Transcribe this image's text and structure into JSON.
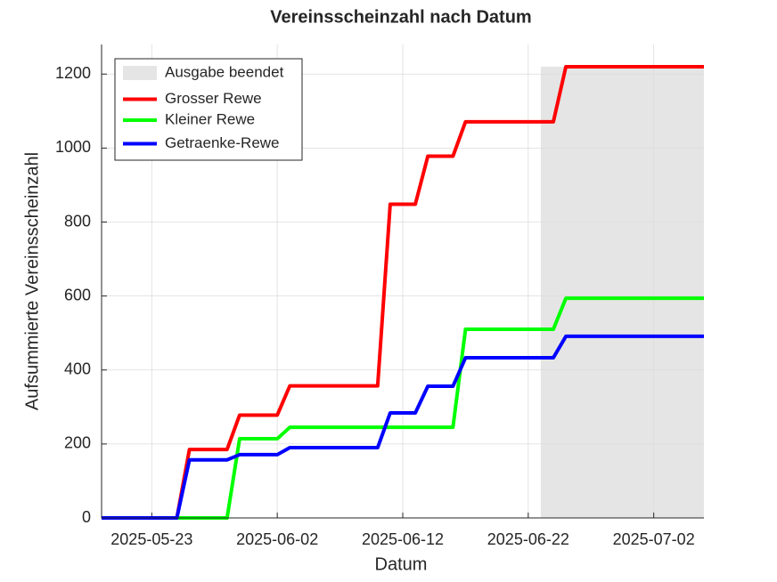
{
  "chart_data": {
    "type": "line",
    "title": "Vereinsscheinzahl nach Datum",
    "x_label": "Datum",
    "y_label": "Aufsummierte Vereinsscheinzahl",
    "xlim": [
      "2025-05-19",
      "2025-07-06"
    ],
    "xticks": [
      "2025-05-23",
      "2025-06-02",
      "2025-06-12",
      "2025-06-22",
      "2025-07-02"
    ],
    "ylim": [
      0,
      1280
    ],
    "yticks": [
      0,
      200,
      400,
      600,
      800,
      1000,
      1200
    ],
    "grid": true,
    "legend": "northwest",
    "shade": {
      "name": "Ausgabe beendet",
      "color": "#e5e5e5",
      "x": [
        "2025-06-23",
        "2025-07-06"
      ],
      "y": [
        0,
        1220
      ]
    },
    "series": [
      {
        "name": "Grosser Rewe",
        "color": "#ff0000",
        "x": [
          "2025-05-19",
          "2025-05-25",
          "2025-05-26",
          "2025-05-29",
          "2025-05-30",
          "2025-06-02",
          "2025-06-03",
          "2025-06-10",
          "2025-06-11",
          "2025-06-13",
          "2025-06-14",
          "2025-06-16",
          "2025-06-17",
          "2025-06-24",
          "2025-06-25",
          "2025-07-06"
        ],
        "values": [
          0,
          0,
          185,
          185,
          278,
          278,
          357,
          357,
          848,
          848,
          978,
          978,
          1071,
          1071,
          1220,
          1220
        ]
      },
      {
        "name": "Kleiner Rewe",
        "color": "#00ff00",
        "x": [
          "2025-05-19",
          "2025-05-29",
          "2025-05-30",
          "2025-06-02",
          "2025-06-03",
          "2025-06-16",
          "2025-06-17",
          "2025-06-24",
          "2025-06-25",
          "2025-07-06"
        ],
        "values": [
          0,
          0,
          214,
          214,
          245,
          245,
          510,
          510,
          594,
          594
        ]
      },
      {
        "name": "Getraenke-Rewe",
        "color": "#0000ff",
        "x": [
          "2025-05-19",
          "2025-05-25",
          "2025-05-26",
          "2025-05-29",
          "2025-05-30",
          "2025-06-02",
          "2025-06-03",
          "2025-06-10",
          "2025-06-11",
          "2025-06-13",
          "2025-06-14",
          "2025-06-16",
          "2025-06-17",
          "2025-06-24",
          "2025-06-25",
          "2025-07-06"
        ],
        "values": [
          0,
          0,
          157,
          157,
          171,
          171,
          190,
          190,
          284,
          284,
          356,
          356,
          433,
          433,
          491,
          491
        ]
      }
    ]
  }
}
